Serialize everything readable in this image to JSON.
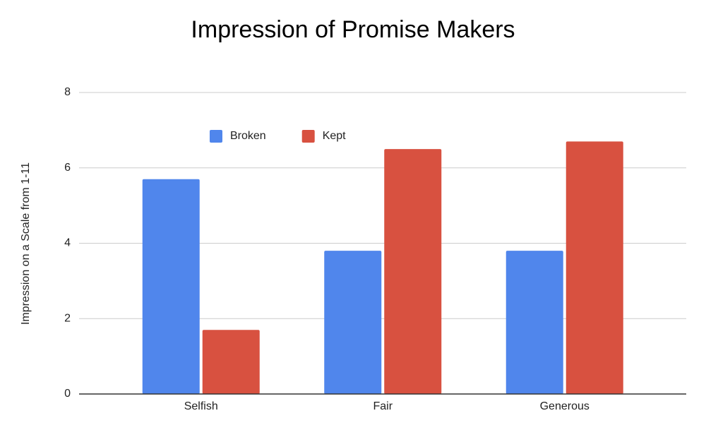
{
  "chart_data": {
    "type": "bar",
    "title": "Impression of Promise Makers",
    "y_label": "Impression on a Scale from 1-11",
    "categories": [
      "Selfish",
      "Fair",
      "Generous"
    ],
    "series": [
      {
        "name": "Broken",
        "color": "#5086ec",
        "values": [
          5.7,
          3.8,
          3.8
        ]
      },
      {
        "name": "Kept",
        "color": "#d85140",
        "values": [
          1.7,
          6.5,
          6.7
        ]
      }
    ],
    "ylim": [
      0,
      8
    ],
    "yticks": [
      0,
      2,
      4,
      6,
      8
    ],
    "grid": true,
    "legend": "top"
  }
}
